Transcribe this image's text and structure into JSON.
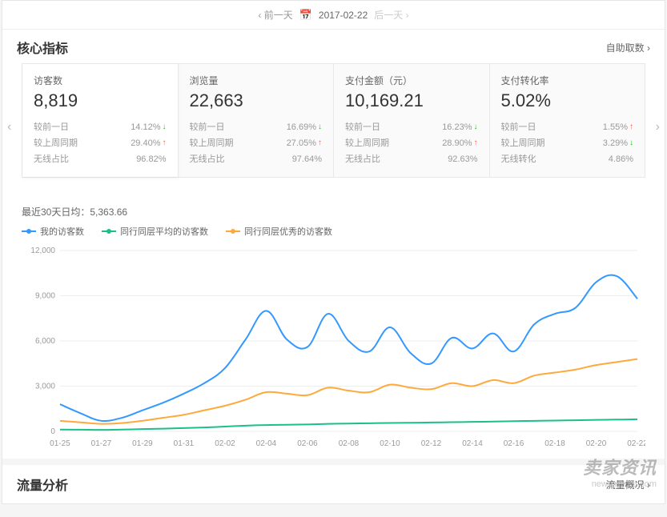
{
  "dateBar": {
    "prev": "前一天",
    "date": "2017-02-22",
    "next": "后一天"
  },
  "sectionTitle": "核心指标",
  "selfGetLabel": "自助取数",
  "cards": [
    {
      "title": "访客数",
      "value": "8,819",
      "rows": [
        {
          "label": "较前一日",
          "pct": "14.12%",
          "dir": "down"
        },
        {
          "label": "较上周同期",
          "pct": "29.40%",
          "dir": "up"
        },
        {
          "label": "无线占比",
          "pct": "96.82%",
          "dir": ""
        }
      ]
    },
    {
      "title": "浏览量",
      "value": "22,663",
      "rows": [
        {
          "label": "较前一日",
          "pct": "16.69%",
          "dir": "down"
        },
        {
          "label": "较上周同期",
          "pct": "27.05%",
          "dir": "up"
        },
        {
          "label": "无线占比",
          "pct": "97.64%",
          "dir": ""
        }
      ]
    },
    {
      "title": "支付金额（元）",
      "value": "10,169.21",
      "rows": [
        {
          "label": "较前一日",
          "pct": "16.23%",
          "dir": "down"
        },
        {
          "label": "较上周同期",
          "pct": "28.90%",
          "dir": "up"
        },
        {
          "label": "无线占比",
          "pct": "92.63%",
          "dir": ""
        }
      ]
    },
    {
      "title": "支付转化率",
      "value": "5.02%",
      "rows": [
        {
          "label": "较前一日",
          "pct": "1.55%",
          "dir": "up"
        },
        {
          "label": "较上周同期",
          "pct": "3.29%",
          "dir": "down"
        },
        {
          "label": "无线转化",
          "pct": "4.86%",
          "dir": ""
        }
      ]
    }
  ],
  "chartSubtitle": "最近30天日均：5,363.66",
  "legend": [
    {
      "label": "我的访客数",
      "color": "#3399ff"
    },
    {
      "label": "同行同层平均的访客数",
      "color": "#1bbf89"
    },
    {
      "label": "同行同层优秀的访客数",
      "color": "#ffa93c"
    }
  ],
  "chart": {
    "type": "line",
    "ylim": [
      0,
      12000
    ],
    "ytick_step": 3000,
    "yticks": [
      "0",
      "3,000",
      "6,000",
      "9,000",
      "12,000"
    ],
    "xlabels": [
      "01-25",
      "01-27",
      "01-29",
      "01-31",
      "02-02",
      "02-04",
      "02-06",
      "02-08",
      "02-10",
      "02-12",
      "02-14",
      "02-16",
      "02-18",
      "02-20",
      "02-22"
    ],
    "background_color": "#ffffff",
    "grid_color": "#eeeeee",
    "label_fontsize": 10,
    "line_width": 2,
    "series": [
      {
        "name": "my",
        "color": "#3399ff",
        "values": [
          1800,
          1200,
          700,
          900,
          1400,
          1900,
          2500,
          3200,
          4200,
          6100,
          8000,
          6100,
          5600,
          7800,
          6000,
          5300,
          6900,
          5200,
          4500,
          6200,
          5500,
          6500,
          5300,
          7100,
          7800,
          8200,
          9900,
          10300,
          8800
        ]
      },
      {
        "name": "peer_avg",
        "color": "#1bbf89",
        "values": [
          120,
          110,
          100,
          120,
          150,
          180,
          220,
          260,
          320,
          380,
          420,
          440,
          460,
          500,
          520,
          540,
          560,
          570,
          590,
          610,
          630,
          650,
          680,
          700,
          720,
          740,
          760,
          780,
          800
        ]
      },
      {
        "name": "peer_top",
        "color": "#ffa93c",
        "values": [
          700,
          600,
          500,
          550,
          700,
          900,
          1100,
          1400,
          1700,
          2100,
          2600,
          2500,
          2400,
          2900,
          2700,
          2600,
          3100,
          2900,
          2800,
          3200,
          3000,
          3400,
          3200,
          3700,
          3900,
          4100,
          4400,
          4600,
          4800
        ]
      }
    ]
  },
  "section2Title": "流量分析",
  "section2More": "流量概况",
  "watermark": {
    "cn": "卖家资讯",
    "url": "news.maijia.com"
  }
}
